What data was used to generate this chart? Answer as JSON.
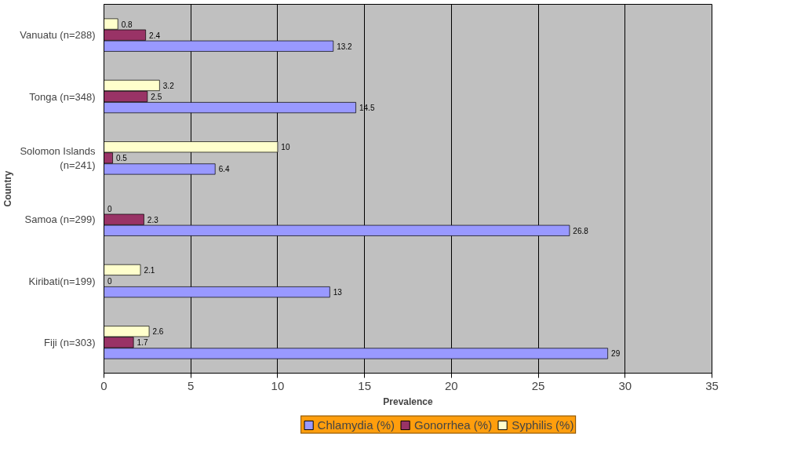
{
  "chart_data": {
    "type": "bar",
    "orientation": "horizontal",
    "xlabel": "Prevalence",
    "ylabel": "Country",
    "categories": [
      "Vanuatu (n=288)",
      "Tonga (n=348)",
      "Solomon Islands (n=241)",
      "Samoa (n=299)",
      "Kiribati(n=199)",
      "Fiji (n=303)"
    ],
    "series": [
      {
        "name": "Chlamydia (%)",
        "color": "#9999ff",
        "values": [
          13.2,
          14.5,
          6.4,
          26.8,
          13,
          29
        ]
      },
      {
        "name": "Gonorrhea (%)",
        "color": "#993366",
        "values": [
          2.4,
          2.5,
          0.5,
          2.3,
          0,
          1.7
        ]
      },
      {
        "name": "Syphilis (%)",
        "color": "#ffffcc",
        "values": [
          0.8,
          3.2,
          10,
          0,
          2.1,
          2.6
        ]
      }
    ],
    "xlim": [
      0,
      35
    ],
    "xticks": [
      0,
      5,
      10,
      15,
      20,
      25,
      30,
      35
    ],
    "grid": "x",
    "legend": "bottom",
    "data_labels": true
  }
}
